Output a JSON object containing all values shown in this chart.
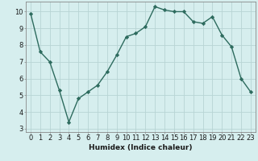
{
  "x": [
    0,
    1,
    2,
    3,
    4,
    5,
    6,
    7,
    8,
    9,
    10,
    11,
    12,
    13,
    14,
    15,
    16,
    17,
    18,
    19,
    20,
    21,
    22,
    23
  ],
  "y": [
    9.9,
    7.6,
    7.0,
    5.3,
    3.4,
    4.8,
    5.2,
    5.6,
    6.4,
    7.4,
    8.5,
    8.7,
    9.1,
    10.3,
    10.1,
    10.0,
    10.0,
    9.4,
    9.3,
    9.7,
    8.6,
    7.9,
    6.0,
    5.2
  ],
  "line_color": "#2d6b5e",
  "marker": "D",
  "marker_size": 2.2,
  "bg_color": "#d6eeee",
  "grid_color": "#b8d4d4",
  "xlabel": "Humidex (Indice chaleur)",
  "ylim": [
    2.8,
    10.6
  ],
  "xlim": [
    -0.5,
    23.5
  ],
  "yticks": [
    3,
    4,
    5,
    6,
    7,
    8,
    9,
    10
  ],
  "xticks": [
    0,
    1,
    2,
    3,
    4,
    5,
    6,
    7,
    8,
    9,
    10,
    11,
    12,
    13,
    14,
    15,
    16,
    17,
    18,
    19,
    20,
    21,
    22,
    23
  ],
  "font_color": "#1a1a1a",
  "xlabel_fontsize": 6.5,
  "tick_fontsize": 6.0,
  "linewidth": 1.0
}
